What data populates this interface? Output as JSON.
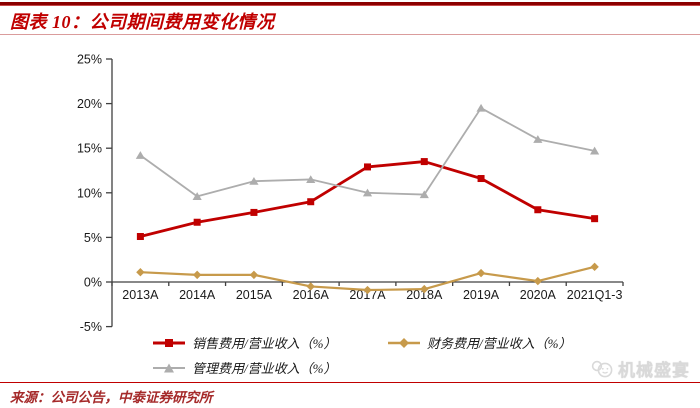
{
  "header": {
    "title": "图表 10：公司期间费用变化情况"
  },
  "footer": {
    "source": "来源：公司公告，中泰证券研究所"
  },
  "watermark": {
    "text": "机械盛宴"
  },
  "colors": {
    "accent_dark_red": "#8B0000",
    "accent_red": "#C00000",
    "rule_light_red": "#DA9C9C",
    "axis": "#404040",
    "tick_text": "#1a1a1a",
    "source_text": "#A52A2A",
    "watermark_gray": "#D9D9D9"
  },
  "chart_data": {
    "type": "line",
    "title": "公司期间费用变化情况",
    "categories": [
      "2013A",
      "2014A",
      "2015A",
      "2016A",
      "2017A",
      "2018A",
      "2019A",
      "2020A",
      "2021Q1-3"
    ],
    "series": [
      {
        "name": "销售费用/营业收入（%）",
        "color": "#C00000",
        "marker": "square",
        "line_width": 2.8,
        "values": [
          5.1,
          6.7,
          7.8,
          9.0,
          12.9,
          13.5,
          11.6,
          8.1,
          7.1
        ]
      },
      {
        "name": "财务费用/营业收入（%）",
        "color": "#C79A4B",
        "marker": "diamond",
        "line_width": 2.2,
        "values": [
          1.1,
          0.8,
          0.8,
          -0.5,
          -0.9,
          -0.8,
          1.0,
          0.1,
          1.7
        ]
      },
      {
        "name": "管理费用/营业收入（%）",
        "color": "#ADADAD",
        "marker": "triangle",
        "line_width": 1.8,
        "values": [
          14.2,
          9.6,
          11.3,
          11.5,
          10.0,
          9.8,
          19.5,
          16.0,
          14.7
        ]
      }
    ],
    "xlabel": "",
    "ylabel": "",
    "ylim": [
      -5,
      25
    ],
    "y_ticks": [
      25,
      20,
      15,
      10,
      5,
      0,
      -5
    ],
    "y_tick_suffix": "%",
    "grid": false,
    "legend_position": "bottom"
  }
}
